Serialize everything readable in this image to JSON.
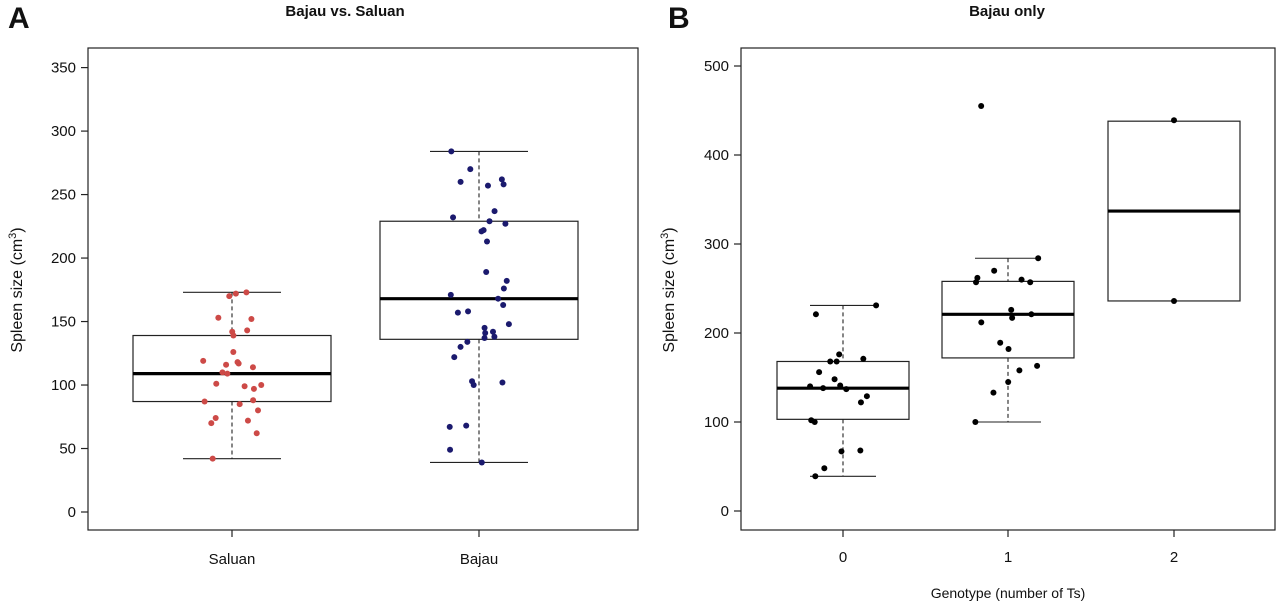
{
  "figure": {
    "panels": [
      {
        "letter": "A",
        "title": "Bajau vs. Saluan"
      },
      {
        "letter": "B",
        "title": "Bajau only"
      }
    ]
  },
  "chart_data": [
    {
      "type": "boxplot",
      "panel": "A",
      "title": "Bajau vs. Saluan",
      "xlabel": "",
      "ylabel": "Spleen size (cm3)",
      "ylabel_base": "Spleen size (cm",
      "ylabel_sup": "3",
      "ylabel_close": ")",
      "ylim": [
        0,
        360
      ],
      "yticks": [
        0,
        50,
        100,
        150,
        200,
        250,
        300,
        350
      ],
      "categories": [
        "Saluan",
        "Bajau"
      ],
      "colors": {
        "Saluan": "#cd4a47",
        "Bajau": "#1b1a6e"
      },
      "boxes": [
        {
          "category": "Saluan",
          "min": 42,
          "q1": 87,
          "median": 109,
          "q3": 139,
          "max": 173
        },
        {
          "category": "Bajau",
          "min": 39,
          "q1": 136,
          "median": 168,
          "q3": 229,
          "max": 284
        }
      ],
      "points": [
        {
          "category": "Saluan",
          "values": [
            173,
            172,
            170,
            153,
            152,
            143,
            142,
            139,
            126,
            119,
            118,
            117,
            116,
            114,
            110,
            109,
            101,
            100,
            99,
            97,
            88,
            87,
            85,
            80,
            74,
            72,
            70,
            62,
            42
          ]
        },
        {
          "category": "Bajau",
          "values": [
            284,
            270,
            262,
            260,
            258,
            257,
            237,
            232,
            229,
            227,
            222,
            221,
            213,
            189,
            182,
            176,
            171,
            168,
            163,
            158,
            157,
            148,
            145,
            142,
            141,
            138,
            137,
            134,
            130,
            122,
            103,
            102,
            100,
            68,
            67,
            49,
            39
          ]
        }
      ]
    },
    {
      "type": "boxplot",
      "panel": "B",
      "title": "Bajau only",
      "xlabel": "Genotype (number of Ts)",
      "ylabel": "Spleen size (cm3)",
      "ylabel_base": "Spleen size (cm",
      "ylabel_sup": "3",
      "ylabel_close": ")",
      "ylim": [
        0,
        500
      ],
      "yticks": [
        0,
        100,
        200,
        300,
        400,
        500
      ],
      "categories": [
        "0",
        "1",
        "2"
      ],
      "colors": {
        "points": "#000000"
      },
      "boxes": [
        {
          "category": "0",
          "min": 39,
          "q1": 103,
          "median": 138,
          "q3": 168,
          "max": 231
        },
        {
          "category": "1",
          "min": 100,
          "q1": 172,
          "median": 221,
          "q3": 258,
          "max": 284
        },
        {
          "category": "2",
          "min": 236,
          "q1": 236,
          "median": 337,
          "q3": 438,
          "max": 438
        }
      ],
      "points": [
        {
          "category": "0",
          "values": [
            231,
            221,
            176,
            171,
            168,
            168,
            156,
            148,
            141,
            140,
            138,
            137,
            129,
            122,
            102,
            100,
            68,
            67,
            48,
            39
          ]
        },
        {
          "category": "1",
          "values": [
            455,
            284,
            270,
            262,
            260,
            257,
            257,
            226,
            221,
            217,
            212,
            189,
            182,
            163,
            158,
            145,
            133,
            100
          ]
        },
        {
          "category": "2",
          "values": [
            439,
            236
          ]
        }
      ]
    }
  ]
}
